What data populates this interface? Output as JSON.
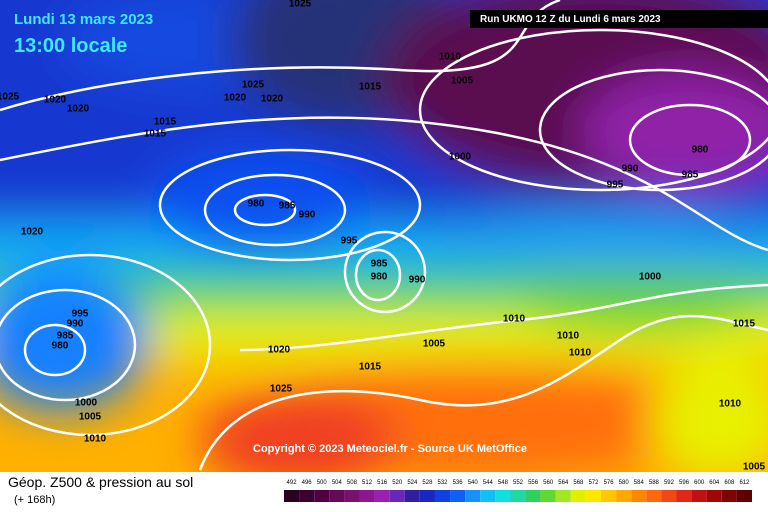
{
  "header": {
    "date": "Lundi 13 mars 2023",
    "time": "13:00 locale",
    "run": "Run UKMO 12 Z du Lundi 6 mars 2023"
  },
  "copyright": "Copyright © 2023 Meteociel.fr - Source UK MetOffice",
  "footer": {
    "title": "Géop. Z500 & pression au sol",
    "lead": "(+ 168h)"
  },
  "isobar_labels": [
    1025,
    1025,
    1020,
    1020,
    1025,
    1020,
    1020,
    1015,
    1010,
    1005,
    1015,
    1015,
    1000,
    990,
    980,
    985,
    995,
    980,
    985,
    990,
    995,
    1020,
    985,
    980,
    990,
    1000,
    995,
    990,
    985,
    980,
    1010,
    1010,
    1010,
    1015,
    1005,
    1020,
    1015,
    1025,
    1000,
    1005,
    1010,
    1010,
    1005
  ],
  "legend": [
    {
      "value": 492,
      "color": "#2a0020"
    },
    {
      "value": 496,
      "color": "#3c0030"
    },
    {
      "value": 500,
      "color": "#500040"
    },
    {
      "value": 504,
      "color": "#660a56"
    },
    {
      "value": 508,
      "color": "#7a1070"
    },
    {
      "value": 512,
      "color": "#8c1890"
    },
    {
      "value": 516,
      "color": "#9a20b0"
    },
    {
      "value": 520,
      "color": "#6a28b8"
    },
    {
      "value": 524,
      "color": "#3020a0"
    },
    {
      "value": 528,
      "color": "#1a28c0"
    },
    {
      "value": 532,
      "color": "#1040e0"
    },
    {
      "value": 536,
      "color": "#1060f8"
    },
    {
      "value": 540,
      "color": "#1890ff"
    },
    {
      "value": 544,
      "color": "#10c0f8"
    },
    {
      "value": 548,
      "color": "#10e0e0"
    },
    {
      "value": 552,
      "color": "#20d8a0"
    },
    {
      "value": 556,
      "color": "#30d060"
    },
    {
      "value": 560,
      "color": "#60d830"
    },
    {
      "value": 564,
      "color": "#a0e820"
    },
    {
      "value": 568,
      "color": "#e0f000"
    },
    {
      "value": 572,
      "color": "#ffe800"
    },
    {
      "value": 576,
      "color": "#ffc800"
    },
    {
      "value": 580,
      "color": "#ffa800"
    },
    {
      "value": 584,
      "color": "#ff8800"
    },
    {
      "value": 588,
      "color": "#ff6810"
    },
    {
      "value": 592,
      "color": "#f04818"
    },
    {
      "value": 596,
      "color": "#e02818"
    },
    {
      "value": 600,
      "color": "#c01010"
    },
    {
      "value": 604,
      "color": "#a00808"
    },
    {
      "value": 608,
      "color": "#800404"
    },
    {
      "value": 612,
      "color": "#600000"
    }
  ]
}
